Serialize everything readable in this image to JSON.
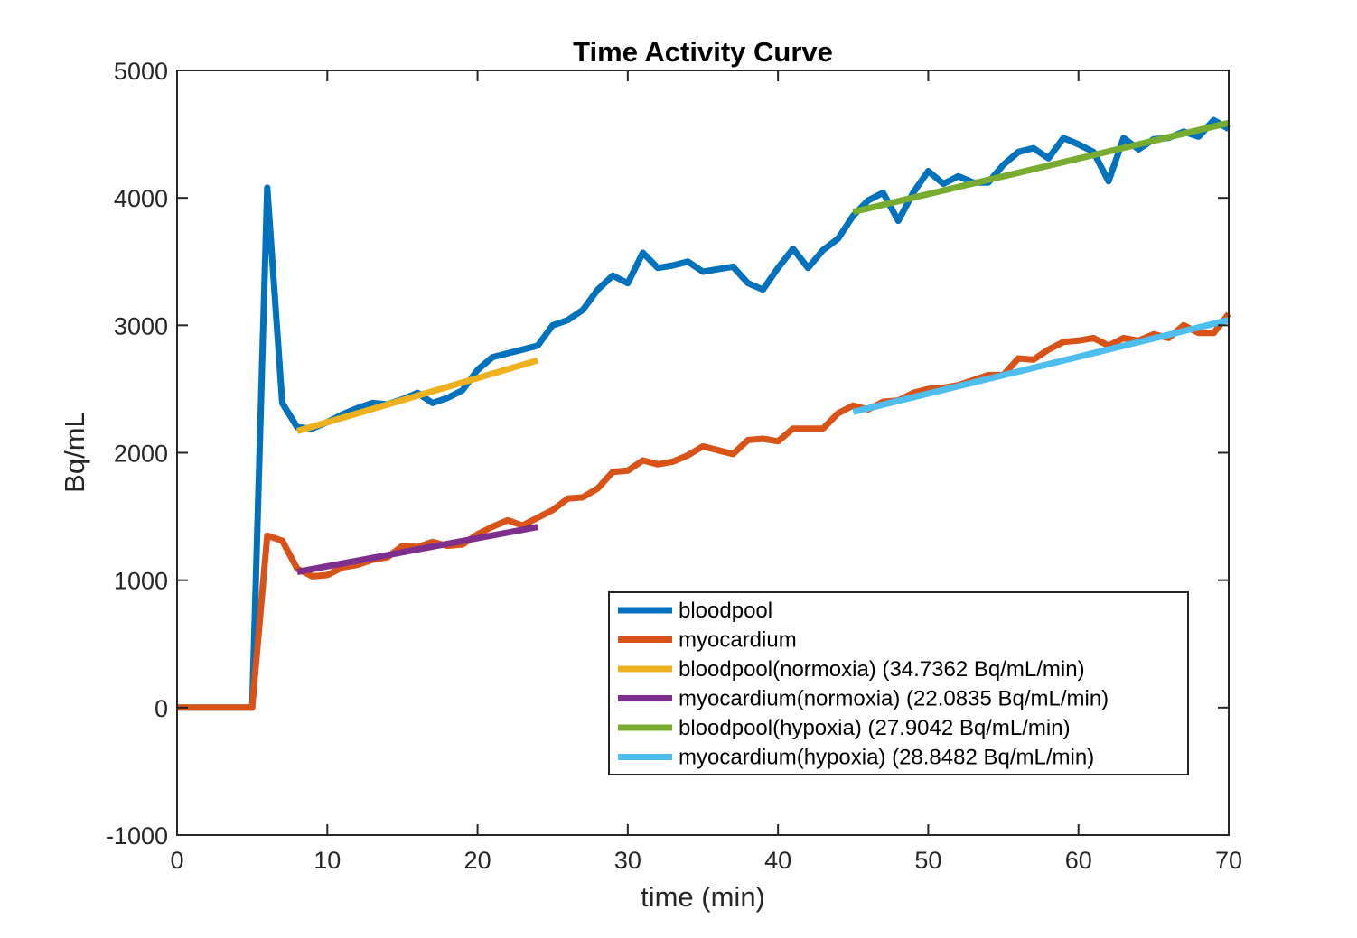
{
  "chart_data": {
    "type": "line",
    "title": "Time Activity Curve",
    "xlabel": "time (min)",
    "ylabel": "Bq/mL",
    "xlim": [
      0,
      70
    ],
    "ylim": [
      -1000,
      5000
    ],
    "xticks": [
      0,
      10,
      20,
      30,
      40,
      50,
      60,
      70
    ],
    "yticks": [
      -1000,
      0,
      1000,
      2000,
      3000,
      4000,
      5000
    ],
    "legend_position": "lower-right",
    "series": [
      {
        "name": "bloodpool",
        "color": "#0072BD",
        "x": [
          0,
          1,
          2,
          3,
          4,
          5,
          6,
          7,
          8,
          9,
          10,
          11,
          12,
          13,
          14,
          15,
          16,
          17,
          18,
          19,
          20,
          21,
          22,
          23,
          24,
          25,
          26,
          27,
          28,
          29,
          30,
          31,
          32,
          33,
          34,
          35,
          36,
          37,
          38,
          39,
          40,
          41,
          42,
          43,
          44,
          45,
          46,
          47,
          48,
          49,
          50,
          51,
          52,
          53,
          54,
          55,
          56,
          57,
          58,
          59,
          60,
          61,
          62,
          63,
          64,
          65,
          66,
          67,
          68,
          69,
          70
        ],
        "values": [
          0,
          0,
          0,
          0,
          0,
          0,
          4080,
          2390,
          2200,
          2190,
          2240,
          2300,
          2350,
          2390,
          2380,
          2420,
          2470,
          2390,
          2430,
          2490,
          2650,
          2750,
          2780,
          2810,
          2840,
          3000,
          3040,
          3120,
          3280,
          3390,
          3330,
          3570,
          3450,
          3470,
          3500,
          3420,
          3440,
          3460,
          3330,
          3280,
          3450,
          3600,
          3450,
          3590,
          3680,
          3860,
          3980,
          4040,
          3820,
          4040,
          4210,
          4110,
          4170,
          4120,
          4120,
          4260,
          4360,
          4390,
          4310,
          4470,
          4420,
          4360,
          4130,
          4470,
          4380,
          4460,
          4470,
          4520,
          4480,
          4610,
          4540
        ]
      },
      {
        "name": "myocardium",
        "color": "#D95319",
        "x": [
          0,
          1,
          2,
          3,
          4,
          5,
          6,
          7,
          8,
          9,
          10,
          11,
          12,
          13,
          14,
          15,
          16,
          17,
          18,
          19,
          20,
          21,
          22,
          23,
          24,
          25,
          26,
          27,
          28,
          29,
          30,
          31,
          32,
          33,
          34,
          35,
          36,
          37,
          38,
          39,
          40,
          41,
          42,
          43,
          44,
          45,
          46,
          47,
          48,
          49,
          50,
          51,
          52,
          53,
          54,
          55,
          56,
          57,
          58,
          59,
          60,
          61,
          62,
          63,
          64,
          65,
          66,
          67,
          68,
          69,
          70
        ],
        "values": [
          0,
          0,
          0,
          0,
          0,
          0,
          1350,
          1310,
          1090,
          1030,
          1040,
          1100,
          1120,
          1160,
          1180,
          1270,
          1260,
          1300,
          1270,
          1280,
          1360,
          1420,
          1470,
          1430,
          1490,
          1550,
          1640,
          1650,
          1720,
          1850,
          1860,
          1940,
          1910,
          1930,
          1980,
          2050,
          2020,
          1990,
          2100,
          2110,
          2090,
          2190,
          2190,
          2190,
          2310,
          2370,
          2340,
          2400,
          2410,
          2470,
          2500,
          2510,
          2530,
          2570,
          2610,
          2610,
          2740,
          2730,
          2810,
          2870,
          2880,
          2900,
          2840,
          2900,
          2880,
          2930,
          2900,
          3000,
          2940,
          2940,
          3090
        ]
      },
      {
        "name": "bloodpool(normoxia) (34.7362 Bq/mL/min)",
        "color": "#EDB120",
        "x": [
          8,
          24
        ],
        "values": [
          2170,
          2725
        ]
      },
      {
        "name": "myocardium(normoxia) (22.0835 Bq/mL/min)",
        "color": "#7E2F8E",
        "x": [
          8,
          24
        ],
        "values": [
          1065,
          1418
        ]
      },
      {
        "name": "bloodpool(hypoxia) (27.9042 Bq/mL/min)",
        "color": "#77AC30",
        "x": [
          45,
          70
        ],
        "values": [
          3890,
          4588
        ]
      },
      {
        "name": "myocardium(hypoxia) (28.8482 Bq/mL/min)",
        "color": "#4DBEEE",
        "x": [
          45,
          70
        ],
        "values": [
          2320,
          3041
        ]
      }
    ]
  }
}
